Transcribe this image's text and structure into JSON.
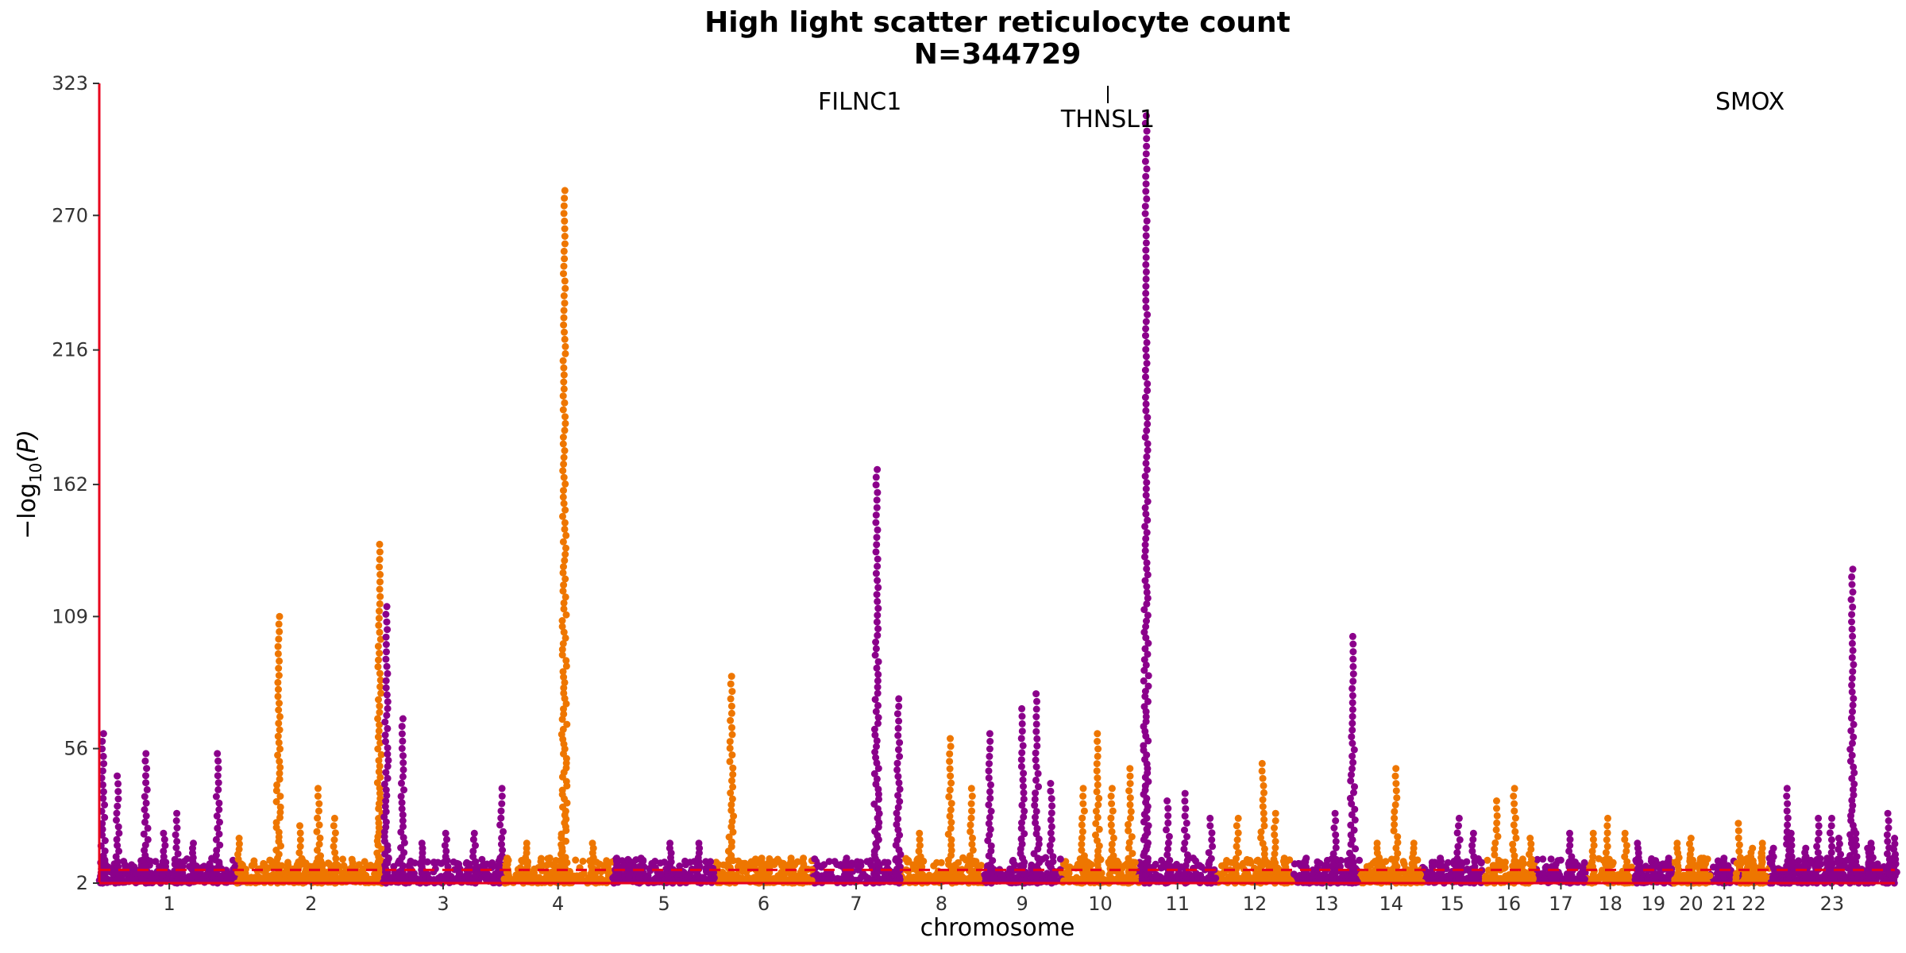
{
  "chart_data": {
    "type": "scatter",
    "title_line1": "High light scatter reticulocyte count",
    "title_line2": "N=344729",
    "xlabel": "chromosome",
    "ylabel": "−log",
    "ylabel_sub": "10",
    "ylabel_arg": "(P)",
    "ylim": [
      2,
      323
    ],
    "yticks": [
      "2",
      "56",
      "109",
      "162",
      "216",
      "270",
      "323"
    ],
    "threshold": 7.3,
    "colors": {
      "odd": "#8B008B",
      "even": "#EE7600",
      "line": "#E8001C"
    },
    "chromosomes": [
      {
        "label": "1",
        "start": 0.0,
        "end": 0.078
      },
      {
        "label": "2",
        "start": 0.078,
        "end": 0.158
      },
      {
        "label": "3",
        "start": 0.158,
        "end": 0.225
      },
      {
        "label": "4",
        "start": 0.225,
        "end": 0.286
      },
      {
        "label": "5",
        "start": 0.286,
        "end": 0.343
      },
      {
        "label": "6",
        "start": 0.343,
        "end": 0.397
      },
      {
        "label": "7",
        "start": 0.397,
        "end": 0.446
      },
      {
        "label": "8",
        "start": 0.446,
        "end": 0.492
      },
      {
        "label": "9",
        "start": 0.492,
        "end": 0.536
      },
      {
        "label": "10",
        "start": 0.536,
        "end": 0.579
      },
      {
        "label": "11",
        "start": 0.579,
        "end": 0.622
      },
      {
        "label": "12",
        "start": 0.622,
        "end": 0.665
      },
      {
        "label": "13",
        "start": 0.665,
        "end": 0.702
      },
      {
        "label": "14",
        "start": 0.702,
        "end": 0.737
      },
      {
        "label": "15",
        "start": 0.737,
        "end": 0.77
      },
      {
        "label": "16",
        "start": 0.77,
        "end": 0.8
      },
      {
        "label": "17",
        "start": 0.8,
        "end": 0.828
      },
      {
        "label": "18",
        "start": 0.828,
        "end": 0.855
      },
      {
        "label": "19",
        "start": 0.855,
        "end": 0.876
      },
      {
        "label": "20",
        "start": 0.876,
        "end": 0.897
      },
      {
        "label": "21",
        "start": 0.897,
        "end": 0.913
      },
      {
        "label": "22",
        "start": 0.913,
        "end": 0.93
      },
      {
        "label": "23",
        "start": 0.93,
        "end": 1.0
      }
    ],
    "peaks": [
      {
        "x": 0.002,
        "h": 62
      },
      {
        "x": 0.01,
        "h": 45
      },
      {
        "x": 0.026,
        "h": 54
      },
      {
        "x": 0.036,
        "h": 22
      },
      {
        "x": 0.043,
        "h": 30
      },
      {
        "x": 0.052,
        "h": 18
      },
      {
        "x": 0.066,
        "h": 54
      },
      {
        "x": 0.078,
        "h": 20
      },
      {
        "x": 0.1,
        "h": 109
      },
      {
        "x": 0.112,
        "h": 25
      },
      {
        "x": 0.122,
        "h": 40
      },
      {
        "x": 0.131,
        "h": 28
      },
      {
        "x": 0.156,
        "h": 138
      },
      {
        "x": 0.16,
        "h": 113
      },
      {
        "x": 0.169,
        "h": 68
      },
      {
        "x": 0.18,
        "h": 18
      },
      {
        "x": 0.193,
        "h": 22
      },
      {
        "x": 0.209,
        "h": 22
      },
      {
        "x": 0.224,
        "h": 40
      },
      {
        "x": 0.227,
        "h": 12
      },
      {
        "x": 0.238,
        "h": 18
      },
      {
        "x": 0.259,
        "h": 280
      },
      {
        "x": 0.275,
        "h": 18
      },
      {
        "x": 0.288,
        "h": 12
      },
      {
        "x": 0.302,
        "h": 12
      },
      {
        "x": 0.318,
        "h": 18
      },
      {
        "x": 0.334,
        "h": 18
      },
      {
        "x": 0.352,
        "h": 85
      },
      {
        "x": 0.369,
        "h": 12
      },
      {
        "x": 0.385,
        "h": 12
      },
      {
        "x": 0.392,
        "h": 12
      },
      {
        "x": 0.416,
        "h": 12
      },
      {
        "x": 0.433,
        "h": 168
      },
      {
        "x": 0.445,
        "h": 76
      },
      {
        "x": 0.457,
        "h": 22
      },
      {
        "x": 0.474,
        "h": 60
      },
      {
        "x": 0.486,
        "h": 40
      },
      {
        "x": 0.496,
        "h": 62
      },
      {
        "x": 0.514,
        "h": 72
      },
      {
        "x": 0.522,
        "h": 78
      },
      {
        "x": 0.53,
        "h": 42
      },
      {
        "x": 0.548,
        "h": 40
      },
      {
        "x": 0.556,
        "h": 62
      },
      {
        "x": 0.564,
        "h": 40
      },
      {
        "x": 0.574,
        "h": 48
      },
      {
        "x": 0.583,
        "h": 310
      },
      {
        "x": 0.595,
        "h": 35
      },
      {
        "x": 0.605,
        "h": 38
      },
      {
        "x": 0.619,
        "h": 28
      },
      {
        "x": 0.634,
        "h": 28
      },
      {
        "x": 0.648,
        "h": 50
      },
      {
        "x": 0.655,
        "h": 30
      },
      {
        "x": 0.66,
        "h": 12
      },
      {
        "x": 0.672,
        "h": 12
      },
      {
        "x": 0.688,
        "h": 30
      },
      {
        "x": 0.698,
        "h": 101
      },
      {
        "x": 0.712,
        "h": 18
      },
      {
        "x": 0.722,
        "h": 48
      },
      {
        "x": 0.732,
        "h": 18
      },
      {
        "x": 0.747,
        "h": 12
      },
      {
        "x": 0.757,
        "h": 28
      },
      {
        "x": 0.765,
        "h": 22
      },
      {
        "x": 0.778,
        "h": 35
      },
      {
        "x": 0.788,
        "h": 40
      },
      {
        "x": 0.797,
        "h": 20
      },
      {
        "x": 0.819,
        "h": 22
      },
      {
        "x": 0.832,
        "h": 22
      },
      {
        "x": 0.84,
        "h": 28
      },
      {
        "x": 0.85,
        "h": 22
      },
      {
        "x": 0.857,
        "h": 18
      },
      {
        "x": 0.874,
        "h": 12
      },
      {
        "x": 0.886,
        "h": 12
      },
      {
        "x": 0.892,
        "h": 12
      },
      {
        "x": 0.905,
        "h": 12
      },
      {
        "x": 0.918,
        "h": 12
      },
      {
        "x": 0.926,
        "h": 18
      },
      {
        "x": 0.932,
        "h": 16
      },
      {
        "x": 0.942,
        "h": 22
      },
      {
        "x": 0.95,
        "h": 12
      },
      {
        "x": 0.962,
        "h": 12
      },
      {
        "x": 0.969,
        "h": 20
      },
      {
        "x": 0.978,
        "h": 22
      },
      {
        "x": 0.987,
        "h": 18
      },
      {
        "x": 0.996,
        "h": 30
      },
      {
        "x": 1.0,
        "h": 20
      },
      {
        "x": 1.01,
        "h": 18
      },
      {
        "x": 1.018,
        "h": 20
      },
      {
        "x": 1.026,
        "h": 12
      },
      {
        "x": 1.048,
        "h": 26
      },
      {
        "x": 1.056,
        "h": 16
      },
      {
        "x": 1.062,
        "h": 14
      },
      {
        "x": 1.078,
        "h": 40
      },
      {
        "x": 1.089,
        "h": 16
      },
      {
        "x": 1.097,
        "h": 28
      },
      {
        "x": 1.105,
        "h": 28
      },
      {
        "x": 1.118,
        "h": 128
      },
      {
        "x": 1.128,
        "h": 16
      }
    ],
    "annotations": [
      {
        "label": "FILNC1"
      },
      {
        "label": "THNSL1"
      },
      {
        "label": "SMOX"
      }
    ]
  }
}
